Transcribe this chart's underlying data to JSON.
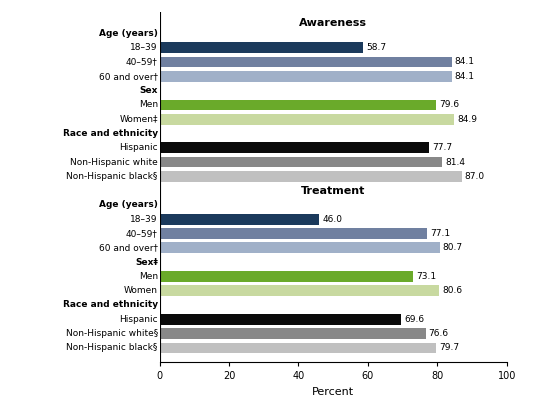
{
  "title_awareness": "Awareness",
  "title_treatment": "Treatment",
  "xlabel": "Percent",
  "xlim": [
    0,
    100
  ],
  "xticks": [
    0,
    20,
    40,
    60,
    80,
    100
  ],
  "awareness_labels": [
    "Age (years)",
    "18–39",
    "40–59†",
    "60 and over†",
    "Sex",
    "Men",
    "Women‡",
    "Race and ethnicity",
    "Hispanic",
    "Non-Hispanic white",
    "Non-Hispanic black§"
  ],
  "awareness_values": [
    null,
    58.7,
    84.1,
    84.1,
    null,
    79.6,
    84.9,
    null,
    77.7,
    81.4,
    87.0
  ],
  "awareness_colors": [
    null,
    "#1b3a5c",
    "#7080a0",
    "#a0b0c8",
    null,
    "#6aaa2a",
    "#c8d9a0",
    null,
    "#0a0a0a",
    "#888888",
    "#c0c0c0"
  ],
  "awareness_bold": [
    true,
    false,
    false,
    false,
    true,
    false,
    false,
    true,
    false,
    false,
    false
  ],
  "treatment_labels": [
    "Age (years)",
    "18–39",
    "40–59†",
    "60 and over†",
    "Sex‡",
    "Men",
    "Women",
    "Race and ethnicity",
    "Hispanic",
    "Non-Hispanic white§",
    "Non-Hispanic black§"
  ],
  "treatment_values": [
    null,
    46.0,
    77.1,
    80.7,
    null,
    73.1,
    80.6,
    null,
    69.6,
    76.6,
    79.7
  ],
  "treatment_colors": [
    null,
    "#1b3a5c",
    "#7080a0",
    "#a0b0c8",
    null,
    "#6aaa2a",
    "#c8d9a0",
    null,
    "#0a0a0a",
    "#888888",
    "#c0c0c0"
  ],
  "treatment_bold": [
    true,
    false,
    false,
    false,
    true,
    false,
    false,
    true,
    false,
    false,
    false
  ],
  "bar_height": 0.75,
  "value_fontsize": 6.5,
  "label_fontsize": 6.5,
  "section_label_fontsize": 6.5,
  "title_fontsize": 8
}
